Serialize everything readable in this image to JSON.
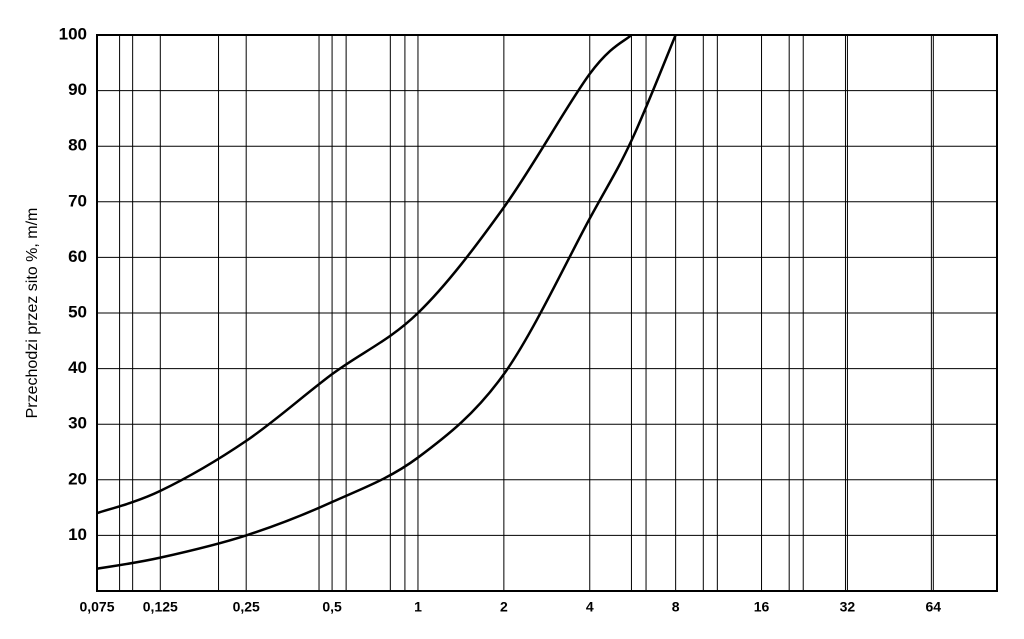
{
  "chart_data": {
    "type": "line",
    "y_label": "Przechodzi przez sito %, m/m",
    "x_scale": "log",
    "x": [
      0.075,
      0.125,
      0.25,
      0.5,
      1,
      2,
      4,
      5.6,
      8
    ],
    "series": [
      {
        "color": "#000000",
        "values": [
          14,
          18,
          27,
          39,
          50,
          69,
          93,
          100,
          null
        ]
      },
      {
        "color": "#000000",
        "values": [
          4,
          6,
          10,
          16,
          24,
          39,
          67,
          81,
          100
        ]
      }
    ],
    "xlim": [
      0.075,
      107
    ],
    "ylim": [
      0,
      100
    ],
    "xticks": [
      {
        "value": 0.075,
        "label": "0,075"
      },
      {
        "value": 0.125,
        "label": "0,125"
      },
      {
        "value": 0.25,
        "label": "0,25"
      },
      {
        "value": 0.5,
        "label": "0,5"
      },
      1,
      2,
      4,
      8,
      16,
      32,
      64
    ],
    "yticks": [
      10,
      20,
      30,
      40,
      50,
      60,
      70,
      80,
      90,
      100
    ],
    "x_minor_grid": [
      0.09,
      0.1,
      0.2,
      0.45,
      0.56,
      0.8,
      0.9,
      5.6,
      6.3,
      10,
      11.2,
      20,
      22.4,
      31.5,
      63
    ],
    "grid": true
  }
}
